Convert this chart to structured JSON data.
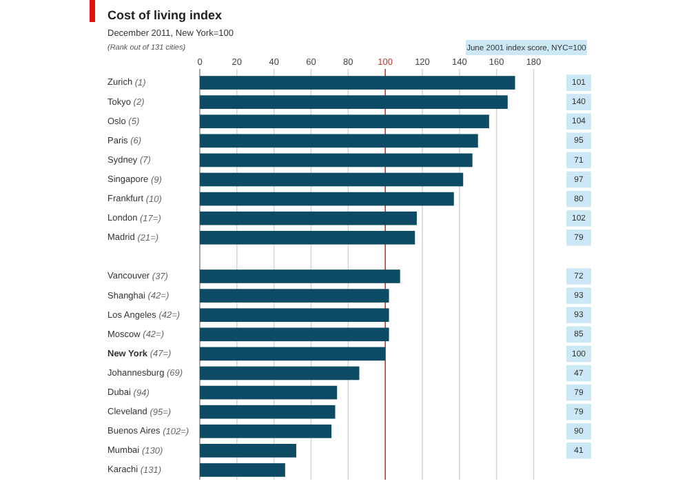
{
  "chart_data": [
    {
      "type": "bar",
      "orientation": "horizontal",
      "title": "Cost of living index",
      "subtitle": "December 2011, New York=100",
      "annotations": [
        "(Rank out of 131 cities)"
      ],
      "categories": [
        "Zurich (1)",
        "Tokyo (2)",
        "Oslo (5)",
        "Paris (6)",
        "Sydney (7)",
        "Singapore (9)",
        "Frankfurt (10)",
        "London (17=)",
        "Madrid (21=)",
        null,
        "Vancouver (37)",
        "Shanghai (42=)",
        "Los Angeles (42=)",
        "Moscow (42=)",
        "New York (47=)",
        "Johannesburg (69)",
        "Dubai (94)",
        "Cleveland (95=)",
        "Buenos Aires (102=)",
        "Mumbai (130)",
        "Karachi (131)"
      ],
      "series": [
        {
          "color": "#0d4a63",
          "values": [
            170,
            166,
            156,
            150,
            147,
            142,
            137,
            117,
            116,
            null,
            108,
            102,
            102,
            102,
            100,
            86,
            74,
            73,
            71,
            52,
            46
          ]
        }
      ],
      "xlim": [
        0,
        180
      ],
      "xticks": [
        0,
        20,
        40,
        60,
        80,
        100,
        120,
        140,
        160,
        180
      ],
      "grid": "x",
      "ref_lines": [
        {
          "axis": "x",
          "value": 100,
          "color": "#c0392b"
        }
      ]
    },
    {
      "type": "other",
      "title": "June 2001 index score, NYC=100",
      "color": "#cde8f5",
      "data_labels": true,
      "categories": [
        null,
        null,
        null,
        null,
        null,
        null,
        null,
        null,
        null,
        null,
        null,
        null,
        null,
        null,
        null,
        null,
        null,
        null,
        null,
        null,
        null
      ],
      "values": [
        101,
        140,
        104,
        95,
        71,
        97,
        80,
        102,
        79,
        null,
        72,
        93,
        93,
        85,
        100,
        47,
        79,
        79,
        90,
        41,
        null
      ]
    }
  ]
}
